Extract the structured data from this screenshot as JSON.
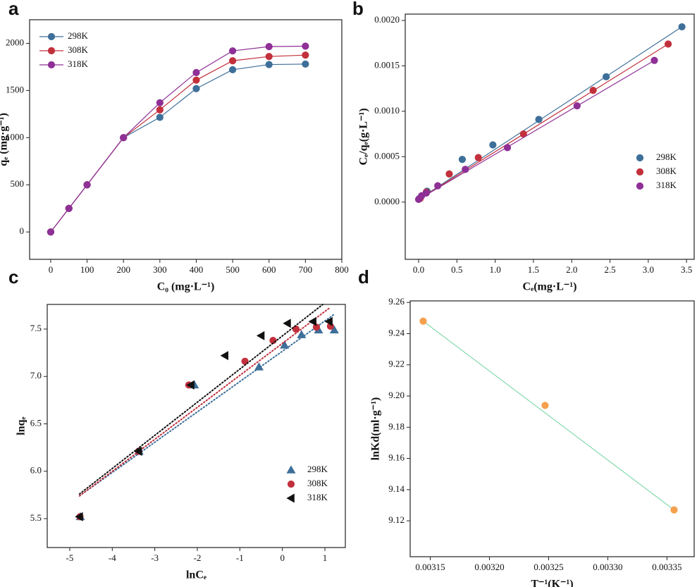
{
  "chart_data": [
    {
      "type": "line",
      "panel_label": "a",
      "xlabel": "C₀ (mg·L⁻¹)",
      "ylabel": "qₑ (mg·g⁻¹)",
      "x": [
        0,
        50,
        100,
        200,
        300,
        400,
        500,
        600,
        700
      ],
      "series": [
        {
          "name": "298K",
          "color": "#3d6f99",
          "marker": "circle",
          "values": [
            0,
            250,
            500,
            1000,
            1215,
            1520,
            1720,
            1775,
            1780
          ]
        },
        {
          "name": "308K",
          "color": "#c2303c",
          "marker": "circle",
          "values": [
            0,
            250,
            500,
            1000,
            1295,
            1610,
            1815,
            1860,
            1875
          ]
        },
        {
          "name": "318K",
          "color": "#8e3096",
          "marker": "circle",
          "values": [
            0,
            250,
            500,
            1000,
            1370,
            1690,
            1920,
            1965,
            1970
          ]
        }
      ],
      "xlim": [
        -58,
        800
      ],
      "xticks": [
        0,
        100,
        200,
        300,
        400,
        500,
        600,
        700,
        800
      ],
      "ylim": [
        -290,
        2250
      ],
      "yticks": [
        0,
        500,
        1000,
        1500,
        2000
      ],
      "legend": "upper left"
    },
    {
      "type": "scatter",
      "panel_label": "b",
      "xlabel": "Cₑ(mg·L⁻¹)",
      "ylabel": "Cₑ/qₑ(g·L⁻¹)",
      "series": [
        {
          "name": "298K",
          "color": "#3d6f99",
          "marker": "circle",
          "x": [
            0.01,
            0.11,
            0.57,
            0.97,
            1.57,
            2.45,
            3.44
          ],
          "values": [
            4e-05,
            0.00012,
            0.00047,
            0.00063,
            0.00091,
            0.00138,
            0.00193
          ],
          "fit_color": "#3d6f99",
          "fit_style": "solid",
          "fit_x": [
            0,
            3.44
          ],
          "fit_y": [
            3e-05,
            0.00193
          ]
        },
        {
          "name": "308K",
          "color": "#c2303c",
          "marker": "circle",
          "x": [
            0.02,
            0.1,
            0.4,
            0.78,
            1.37,
            2.28,
            3.26
          ],
          "values": [
            4e-05,
            0.00011,
            0.00031,
            0.00049,
            0.00075,
            0.00123,
            0.00174
          ],
          "fit_color": "#c2303c",
          "fit_style": "solid",
          "fit_x": [
            0,
            3.26
          ],
          "fit_y": [
            3e-05,
            0.00174
          ]
        },
        {
          "name": "318K",
          "color": "#8e3096",
          "marker": "circle",
          "x": [
            0.0,
            0.04,
            0.1,
            0.25,
            0.61,
            1.16,
            2.07,
            3.08
          ],
          "values": [
            3e-05,
            7e-05,
            0.0001,
            0.00018,
            0.00036,
            0.0006,
            0.00106,
            0.00156
          ],
          "fit_color": "#8e3096",
          "fit_style": "solid",
          "fit_x": [
            0,
            3.08
          ],
          "fit_y": [
            3e-05,
            0.00156
          ]
        }
      ],
      "xlim": [
        -0.175,
        3.6
      ],
      "xticks": [
        {
          "value": 0,
          "label": "0.0"
        },
        0.5,
        {
          "value": 1,
          "label": "1.0"
        },
        1.5,
        {
          "value": 2,
          "label": "2.0"
        },
        2.5,
        {
          "value": 3,
          "label": "3.0"
        },
        3.5
      ],
      "ylim": [
        -0.00063,
        0.00207
      ],
      "yticks": [
        {
          "value": 0,
          "label": "0.0000"
        },
        {
          "value": 0.0005,
          "label": "0.0005"
        },
        {
          "value": 0.001,
          "label": "0.0010"
        },
        {
          "value": 0.0015,
          "label": "0.0015"
        },
        {
          "value": 0.002,
          "label": "0.0020"
        }
      ],
      "legend": "center right"
    },
    {
      "type": "scatter",
      "panel_label": "c",
      "xlabel": "lnCₑ",
      "ylabel": "lnqₑ",
      "series": [
        {
          "name": "298K",
          "color": "#3d6f99",
          "marker": "triangle-up",
          "x": [
            -4.75,
            -3.37,
            -2.07,
            -0.55,
            0.05,
            0.45,
            0.85,
            1.22
          ],
          "values": [
            5.52,
            6.21,
            6.91,
            7.1,
            7.33,
            7.44,
            7.49,
            7.49
          ],
          "fit_color": "#3d6f99",
          "fit_style": "dotted",
          "fit_x": [
            -4.77,
            1.2
          ],
          "fit_y": [
            5.74,
            7.65
          ]
        },
        {
          "name": "308K",
          "color": "#c2303c",
          "marker": "circle",
          "x": [
            -4.76,
            -3.38,
            -2.2,
            -0.88,
            -0.22,
            0.32,
            0.8,
            1.13
          ],
          "values": [
            5.52,
            6.21,
            6.91,
            7.16,
            7.38,
            7.5,
            7.52,
            7.53
          ],
          "fit_color": "#c2303c",
          "fit_style": "dotted",
          "fit_x": [
            -4.77,
            1.1
          ],
          "fit_y": [
            5.74,
            7.72
          ]
        },
        {
          "name": "318K",
          "color": "#111111",
          "marker": "triangle-left",
          "x": [
            -4.77,
            -3.38,
            -2.15,
            -1.35,
            -0.5,
            0.12,
            0.72,
            1.1
          ],
          "values": [
            5.52,
            6.21,
            6.91,
            7.22,
            7.43,
            7.56,
            7.58,
            7.58
          ],
          "fit_color": "#111111",
          "fit_style": "dotted",
          "fit_x": [
            -4.77,
            0.95
          ],
          "fit_y": [
            5.76,
            7.76
          ]
        }
      ],
      "xlim": [
        -5.53,
        1.48
      ],
      "xticks": [
        -5,
        -4,
        -3,
        -2,
        -1,
        0,
        1
      ],
      "ylim": [
        5.195,
        7.76
      ],
      "yticks": [
        5.5,
        {
          "value": 6,
          "label": "6.0"
        },
        6.5,
        {
          "value": 7,
          "label": "7.0"
        },
        7.5
      ],
      "legend": "lower right"
    },
    {
      "type": "scatter",
      "panel_label": "d",
      "xlabel": "T⁻¹(K⁻¹)",
      "ylabel": "lnKd(ml·g⁻¹)",
      "series": [
        {
          "color": "#f5a04e",
          "marker": "circle",
          "x": [
            0.003144,
            0.003247,
            0.003356
          ],
          "values": [
            9.248,
            9.194,
            9.127
          ],
          "fit_color": "#86d9ad",
          "fit_style": "solid",
          "fit_x": [
            0.003144,
            0.003356
          ],
          "fit_y": [
            9.248,
            9.127
          ]
        }
      ],
      "xlim": [
        0.003133,
        0.003373
      ],
      "xticks": [
        0.00315,
        {
          "value": 0.0032,
          "label": "0.00320"
        },
        0.00325,
        {
          "value": 0.0033,
          "label": "0.00330"
        },
        0.00335
      ],
      "ylim": [
        9.097,
        9.261
      ],
      "yticks": [
        9.12,
        9.14,
        9.16,
        9.18,
        {
          "value": 9.2,
          "label": "9.20"
        },
        9.22,
        9.24,
        9.26
      ]
    }
  ]
}
